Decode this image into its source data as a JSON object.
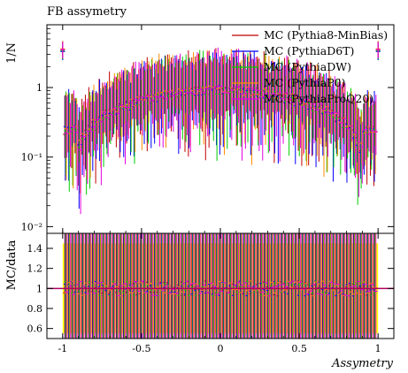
{
  "chart_data": {
    "type": "line",
    "title": "FB assymetry",
    "xlabel": "Assymetry",
    "ylabel": "1/N",
    "ratio_ylabel": "MC/data",
    "xlim": [
      -1.1,
      1.1
    ],
    "ylim": [
      0.008,
      8
    ],
    "yscale": "log",
    "ratio_ylim": [
      0.5,
      1.55
    ],
    "xticks": [
      -1,
      -0.5,
      0,
      0.5,
      1
    ],
    "xtick_labels": [
      "-1",
      "-0.5",
      "0",
      "0.5",
      "1"
    ],
    "yticks": [
      0.01,
      0.1,
      1
    ],
    "ytick_labels": [
      "10⁻²",
      "10⁻¹",
      "1"
    ],
    "ratio_yticks": [
      0.6,
      0.8,
      1,
      1.2,
      1.4
    ],
    "ratio_ytick_labels": [
      "0.6",
      "0.8",
      "1",
      "1.2",
      "1.4"
    ],
    "legend_position": "top-right",
    "band_color": "#ffff00",
    "series": [
      {
        "name": "MC (Pythia8-MinBias)",
        "color": "#c00000",
        "x": [
          -1,
          -0.9,
          -0.8,
          -0.7,
          -0.6,
          -0.5,
          -0.4,
          -0.3,
          -0.2,
          -0.1,
          0,
          0.1,
          0.2,
          0.3,
          0.4,
          0.5,
          0.6,
          0.7,
          0.8,
          0.9,
          1
        ],
        "values": [
          3.5,
          0.13,
          0.3,
          0.45,
          0.55,
          0.65,
          0.75,
          0.82,
          0.88,
          0.92,
          0.95,
          0.92,
          0.88,
          0.82,
          0.75,
          0.65,
          0.55,
          0.45,
          0.3,
          0.13,
          3.5
        ]
      },
      {
        "name": "MC (PythiaD6T)",
        "color": "#0000ff",
        "x": [
          -1,
          -0.9,
          -0.8,
          -0.7,
          -0.6,
          -0.5,
          -0.4,
          -0.3,
          -0.2,
          -0.1,
          0,
          0.1,
          0.2,
          0.3,
          0.4,
          0.5,
          0.6,
          0.7,
          0.8,
          0.9,
          1
        ],
        "values": [
          3.3,
          0.12,
          0.28,
          0.42,
          0.52,
          0.62,
          0.72,
          0.8,
          0.86,
          0.9,
          0.93,
          0.9,
          0.86,
          0.8,
          0.72,
          0.62,
          0.52,
          0.42,
          0.28,
          0.12,
          3.3
        ]
      },
      {
        "name": "MC (PythiaDW)",
        "color": "#00cc00",
        "x": [
          -1,
          -0.9,
          -0.8,
          -0.7,
          -0.6,
          -0.5,
          -0.4,
          -0.3,
          -0.2,
          -0.1,
          0,
          0.1,
          0.2,
          0.3,
          0.4,
          0.5,
          0.6,
          0.7,
          0.8,
          0.9,
          1
        ],
        "values": [
          3.4,
          0.12,
          0.29,
          0.43,
          0.53,
          0.63,
          0.73,
          0.81,
          0.87,
          0.91,
          0.94,
          0.91,
          0.87,
          0.81,
          0.73,
          0.63,
          0.53,
          0.43,
          0.29,
          0.12,
          3.4
        ]
      },
      {
        "name": "MC (PythiaP0)",
        "color": "#ff8c00",
        "x": [
          -1,
          -0.9,
          -0.8,
          -0.7,
          -0.6,
          -0.5,
          -0.4,
          -0.3,
          -0.2,
          -0.1,
          0,
          0.1,
          0.2,
          0.3,
          0.4,
          0.5,
          0.6,
          0.7,
          0.8,
          0.9,
          1
        ],
        "values": [
          3.6,
          0.14,
          0.31,
          0.46,
          0.56,
          0.66,
          0.76,
          0.83,
          0.89,
          0.93,
          0.96,
          0.93,
          0.89,
          0.83,
          0.76,
          0.66,
          0.56,
          0.46,
          0.31,
          0.14,
          3.6
        ]
      },
      {
        "name": "MC (PythiaProQ20)",
        "color": "#e000e0",
        "x": [
          -1,
          -0.9,
          -0.8,
          -0.7,
          -0.6,
          -0.5,
          -0.4,
          -0.3,
          -0.2,
          -0.1,
          0,
          0.1,
          0.2,
          0.3,
          0.4,
          0.5,
          0.6,
          0.7,
          0.8,
          0.9,
          1
        ],
        "values": [
          3.5,
          0.13,
          0.3,
          0.44,
          0.54,
          0.64,
          0.74,
          0.82,
          0.88,
          0.92,
          0.95,
          0.92,
          0.88,
          0.82,
          0.74,
          0.64,
          0.54,
          0.44,
          0.3,
          0.13,
          3.5
        ]
      }
    ]
  }
}
